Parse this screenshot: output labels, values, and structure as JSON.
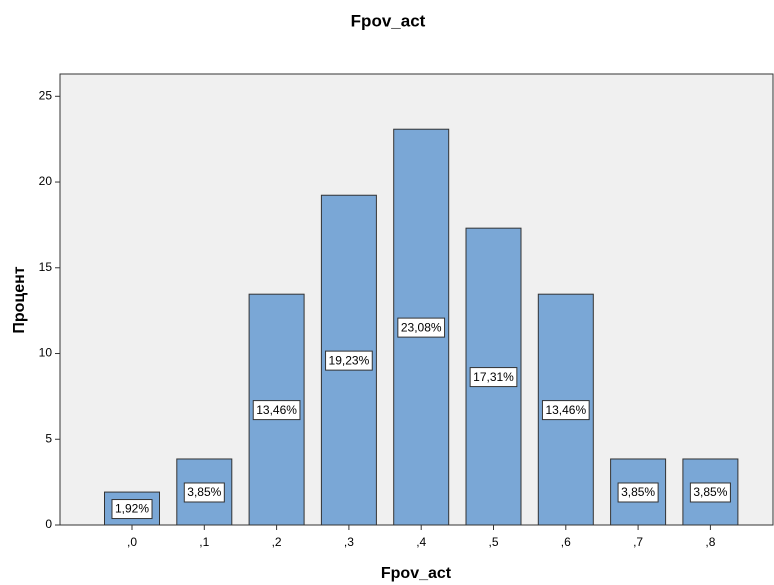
{
  "chart_data": {
    "type": "bar",
    "title": "Fpov_act",
    "x_label": "Fpov_act",
    "y_label": "Процент",
    "categories": [
      ",0",
      ",1",
      ",2",
      ",3",
      ",4",
      ",5",
      ",6",
      ",7",
      ",8"
    ],
    "values": [
      1.92,
      3.85,
      13.46,
      19.23,
      23.08,
      17.31,
      13.46,
      3.85,
      3.85
    ],
    "value_labels": [
      "1,92%",
      "3,85%",
      "13,46%",
      "19,23%",
      "23,08%",
      "17,31%",
      "13,46%",
      "3,85%",
      "3,85%"
    ],
    "color": "#7aa7d6",
    "ylim": [
      0,
      26.3
    ],
    "yticks": [
      0,
      5,
      10,
      15,
      20,
      25
    ],
    "grid": false
  }
}
